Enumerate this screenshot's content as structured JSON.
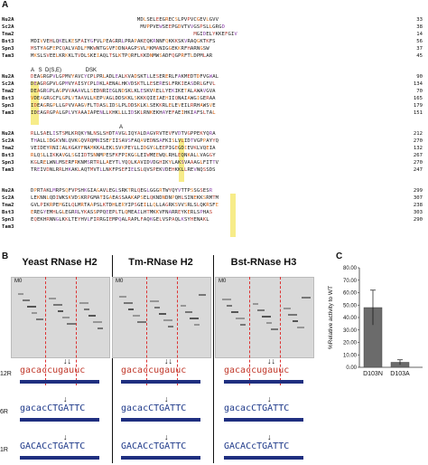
{
  "panel_a": {
    "letter": "A",
    "blocks": [
      {
        "markers": "",
        "rows": [
          {
            "name": "Nu2A",
            "seq": "                                  MDLSELEEGRECSLPVPVCGEVLGVV",
            "num": "33"
          },
          {
            "name": "Sc2A",
            "seq": "                                   MVPPVEWSEEPGDVTVVGSPSLLGRGD",
            "num": "38"
          },
          {
            "name": "Tma2",
            "seq": "                                                    MGIDELYKKEFGIV",
            "num": "14"
          },
          {
            "name": "Bst3",
            "seq": "MDIVVEHLQKELKESFAIYGFVLPEAGRRLPRAPAKEQKRNNFQKKKSKVRAQGKTKFS",
            "num": "56"
          },
          {
            "name": "Spn3",
            "seq": "MSTYAGFEPCQALVADLFMKWNTGGVFDDNAAGPSVLMKMANIGGEKKRFHARNGSW",
            "num": "37"
          },
          {
            "name": "Tam3",
            "seq": "MKSLSVEELKRKKLTVDLSKEIAQLTSLKTPQRFLKKDNMWSADFQGPRFTLDPMLAR",
            "num": "45"
          }
        ]
      },
      {
        "markers": "A   S  D(S,E)                DSK",
        "rows": [
          {
            "name": "Nu2A",
            "seq": "DEAGRGPVLGPMVYAVCYCPLPRLADLEALKVADSKTLLESERERLFAKMEDTDFVGWAL",
            "num": "90"
          },
          {
            "name": "Sc2A",
            "seq": "DEAGRGPVLGPMVYAISYCPLDKLAENALHKVDSKTLLESERESLFRKIEASDRLGFVL",
            "num": "134"
          },
          {
            "name": "Tma2",
            "seq": "DEAGRGPLAGPVVAAAVLLSEDNRIEGLNDSKLKLESKVRELLYEKIKETALAWAVGVA",
            "num": "70"
          },
          {
            "name": "Bst3",
            "seq": "VDEAGRGCFLGPLVTAAVLLKEPVAGLDDSKKLSKKKQIEIAEHIIQNAIAWGIGERAA",
            "num": "165"
          },
          {
            "name": "Spn3",
            "seq": "IDEAGRGPLLGPVVAAGVFLTDASLIDSLPLDDSKLKLSEKKRLELEVEILRRHAWSVE",
            "num": "179"
          },
          {
            "name": "Tam3",
            "seq": "IDEAGRGPALGPLVYAAAIAPENLLKHKLLLIDSKLRNKEKHAYEFAEIHKIAFSLTAL",
            "num": "151"
          }
        ]
      },
      {
        "markers": "                                                           A",
        "rows": [
          {
            "name": "Nu2A",
            "seq": "RLLSAELISTSMLKRQKYNLNSLSHDTAVGLIQYALDAGVRVTEVFVDTVGPPEKYQRA",
            "num": "212"
          },
          {
            "name": "Sc2A",
            "seq": "THALLIDGKVNLQVKGQVRQMNISEFIISAVSFAQAVEDNSAFKISLVLIDTVGPPAYYQ",
            "num": "270"
          },
          {
            "name": "Tma2",
            "seq": "VEIDEYRNIIALKGAYFNAMKKALEKLSVKPEYLLIDGYGLEEPIGEGDIEVKLVQEIA",
            "num": "132"
          },
          {
            "name": "Bst3",
            "seq": "RLQSLLIKKAVGLSGIIDTSNNMPESFKFPIKGGLEIWMEEWQLRHLEQNKALLVAGGY",
            "num": "267"
          },
          {
            "name": "Spn3",
            "seq": "KGLRELWNLMSERFRKNMSRTRLLAEYTLYQQLKAVIDVDGHIKYLAKSVAAAGLFITTV",
            "num": "270"
          },
          {
            "name": "Tam3",
            "seq": "TREIVDNLRRLHKAKLAQTMVTLLNKFPSEFIELSLQVSPEKVDEHKKLLREVNQSSDS",
            "num": "247"
          }
        ]
      },
      {
        "markers": "",
        "rows": [
          {
            "name": "Nu2A",
            "seq": "DPRTAKLMRPSQFVPSHKGIAGAVLEGLSRKTRLQEGLGGGRTWYQYVTTPSSGSESR",
            "num": "299"
          },
          {
            "name": "Sc2A",
            "seq": "LEKNNLQDIWKSKVDSKRPGMATIGAEASSAAKAPSELQKNDNDNPQHLSINEKKSRMTM",
            "num": "307"
          },
          {
            "name": "Tma2",
            "seq": "GVLPIKRPEMGILQLMRTAAPSLKTDHLERYIPSGEILLQLLAGRKSVVSRLSLQKRSFE",
            "num": "238"
          },
          {
            "name": "Bst3",
            "seq": "EREGYEMHLGLEGRRLYKASSPPQEEPLTLQMEAILHTMKKVFNARREYKERLSPHAS",
            "num": "303"
          },
          {
            "name": "Spn3",
            "seq": "EQEKHRNNGLKKLTEYHVLFIRRGIEMPQALRAPLFAQKGELVSPAQLKSYHENAKL",
            "num": "290"
          },
          {
            "name": "Tam3",
            "seq": "",
            "num": ""
          }
        ]
      }
    ]
  },
  "panel_b": {
    "letter": "B",
    "gels": [
      {
        "title": "Yeast RNase H2",
        "m0": "M0"
      },
      {
        "title": "Tm-RNase H2",
        "m0": "M0"
      },
      {
        "title": "Bst-RNase H3",
        "m0": "M0"
      }
    ],
    "substrates": [
      {
        "label": "12R",
        "seqs": [
          "gacaccugauuc",
          "gacaccugauuc",
          "gacaccugauuc"
        ]
      },
      {
        "label": "6R",
        "seqs": [
          "gacacCTGATTC",
          "gacacCTGATTC",
          "gacacCTGATTC"
        ]
      },
      {
        "label": "1R",
        "seqs": [
          "GACACcTGATTC",
          "GACACcTGATTC",
          "GACACcTGATTC"
        ]
      }
    ]
  },
  "panel_c": {
    "letter": "C",
    "chart_data": {
      "type": "bar",
      "categories": [
        "D103N",
        "D103A"
      ],
      "values": [
        48,
        4
      ],
      "errors": [
        14,
        2
      ],
      "ylabel": "%Relative activity to WT",
      "ylim": [
        0,
        80
      ],
      "yticks": [
        "0.00",
        "10.00",
        "20.00",
        "30.00",
        "40.00",
        "50.00",
        "60.00",
        "70.00",
        "80.00"
      ]
    }
  }
}
